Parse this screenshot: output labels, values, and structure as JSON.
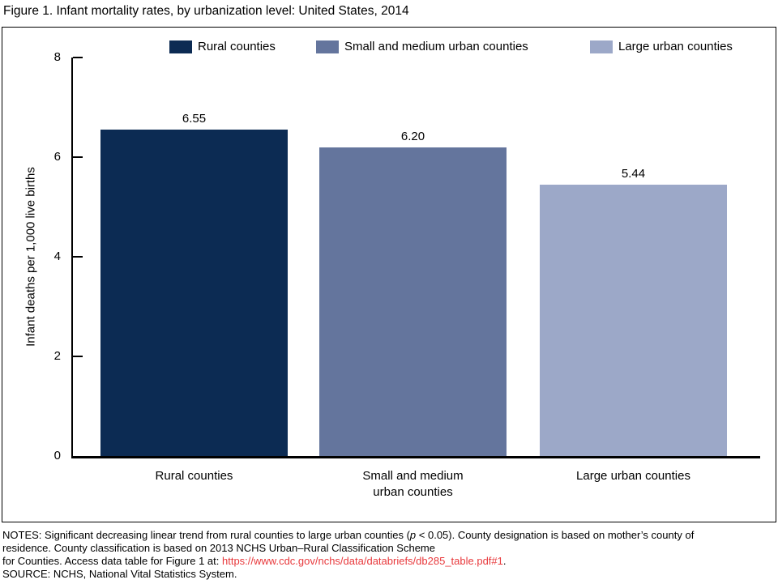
{
  "figure_title": "Figure 1. Infant mortality rates, by urbanization level: United States, 2014",
  "chart_data": {
    "type": "bar",
    "title": "Figure 1. Infant mortality rates, by urbanization level: United States, 2014",
    "categories": [
      "Rural counties",
      "Small and medium urban counties",
      "Large urban counties"
    ],
    "categories_display": [
      "Rural counties",
      "Small and medium\nurban counties",
      "Large urban counties"
    ],
    "values": [
      6.55,
      6.2,
      5.44
    ],
    "value_labels": [
      "6.55",
      "6.20",
      "5.44"
    ],
    "xlabel": "",
    "ylabel": "Infant deaths per 1,000 live births",
    "ylim": [
      0,
      8
    ],
    "yticks": [
      "8",
      "6",
      "4",
      "2",
      "0"
    ],
    "grid": false,
    "bar_colors": [
      "#0C2B53",
      "#64759D",
      "#9CA8C8"
    ],
    "legend": {
      "position": "top",
      "entries": [
        {
          "label": "Rural counties",
          "color": "#0C2B53"
        },
        {
          "label": "Small and medium urban counties",
          "color": "#64759D"
        },
        {
          "label": "Large urban counties",
          "color": "#9CA8C8"
        }
      ]
    }
  },
  "notes": {
    "line1_before_p": "NOTES: Significant decreasing linear trend from rural counties to large urban counties (",
    "line1_p": "p",
    "line1_after_p": " < 0.05). County designation is based on mother’s county of",
    "line2": "residence. County classification is based on 2013 NCHS Urban–Rural Classification Scheme",
    "line3_before_link": "for Counties. Access data table for Figure 1 at: ",
    "line3_link": "https://www.cdc.gov/nchs/data/databriefs/db285_table.pdf#1",
    "line3_after_link": ".",
    "line4": "SOURCE: NCHS, National Vital Statistics System."
  },
  "colors": {
    "link_red": "#E8393C",
    "text": "#000000"
  }
}
